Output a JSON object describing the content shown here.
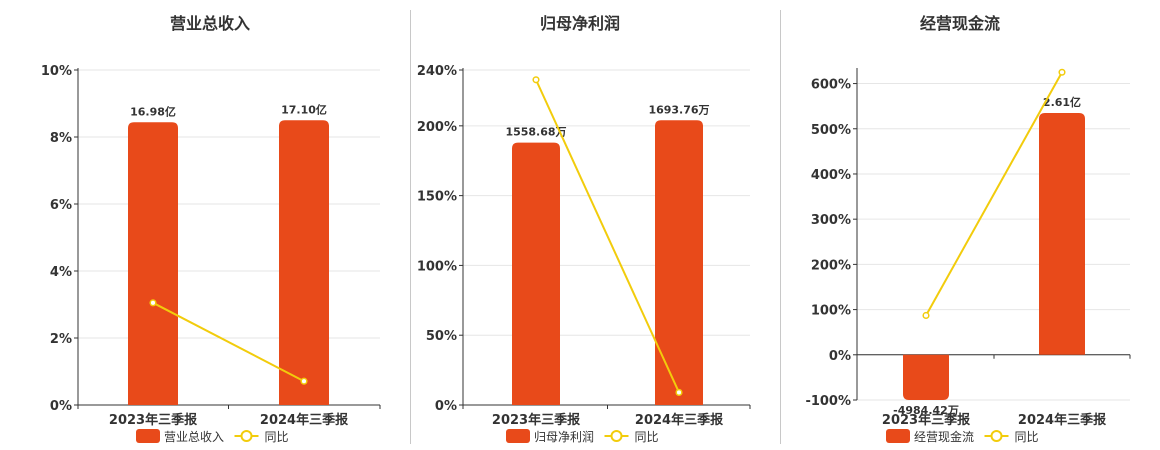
{
  "colors": {
    "bar": "#E84A1A",
    "line": "#F2CC0C",
    "grid": "#E6E6E6",
    "axis": "#333333"
  },
  "chart_data": [
    {
      "type": "bar",
      "title": "营业总收入",
      "categories": [
        "2023年三季报",
        "2024年三季报"
      ],
      "series": [
        {
          "name": "营业总收入",
          "type": "bar",
          "axis_values": [
            8.44,
            8.5
          ],
          "labels": [
            "16.98亿",
            "17.10亿"
          ]
        },
        {
          "name": "同比",
          "type": "line",
          "values": [
            3.05,
            0.71
          ]
        }
      ],
      "yticks": [
        "0%",
        "2%",
        "4%",
        "6%",
        "8%",
        "10%"
      ],
      "ylim": [
        0,
        10
      ],
      "legend": "bottom"
    },
    {
      "type": "bar",
      "title": "归母净利润",
      "categories": [
        "2023年三季报",
        "2024年三季报"
      ],
      "series": [
        {
          "name": "归母净利润",
          "type": "bar",
          "axis_values": [
            188,
            204
          ],
          "labels": [
            "1558.68万",
            "1693.76万"
          ]
        },
        {
          "name": "同比",
          "type": "line",
          "values": [
            233,
            9
          ]
        }
      ],
      "yticks": [
        "0%",
        "50%",
        "100%",
        "150%",
        "200%",
        "240%"
      ],
      "ylim": [
        0,
        240
      ],
      "legend": "bottom"
    },
    {
      "type": "bar",
      "title": "经营现金流",
      "categories": [
        "2023年三季报",
        "2024年三季报"
      ],
      "series": [
        {
          "name": "经营现金流",
          "type": "bar",
          "axis_values": [
            -100,
            535
          ],
          "labels": [
            "-4984.42万",
            "2.61亿"
          ]
        },
        {
          "name": "同比",
          "type": "line",
          "values": [
            87,
            625
          ]
        }
      ],
      "yticks": [
        "-100%",
        "0%",
        "100%",
        "200%",
        "300%",
        "400%",
        "500%",
        "600%"
      ],
      "ylim": [
        -100,
        630
      ],
      "legend": "bottom"
    }
  ]
}
